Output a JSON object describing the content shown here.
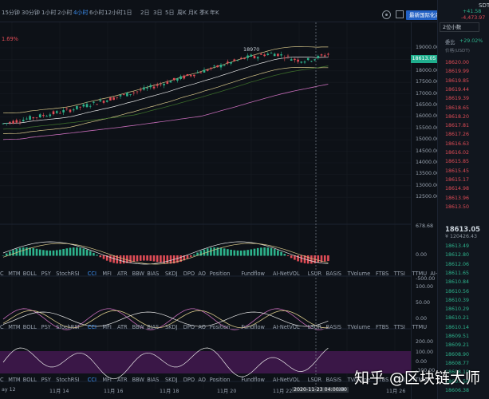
{
  "timeframes": [
    {
      "label": "15分钟",
      "active": false
    },
    {
      "label": "30分钟",
      "active": false
    },
    {
      "label": "1小时",
      "active": false
    },
    {
      "label": "2小时",
      "active": false
    },
    {
      "label": "4小时",
      "active": true
    },
    {
      "label": "6小时",
      "active": false
    },
    {
      "label": "12小时",
      "active": false
    },
    {
      "label": "1日",
      "active": false
    },
    {
      "label": "2日",
      "active": false
    },
    {
      "label": "3日",
      "active": false
    },
    {
      "label": "5日",
      "active": false
    },
    {
      "label": "周K",
      "active": false
    },
    {
      "label": "月K",
      "active": false
    },
    {
      "label": "季K",
      "active": false
    },
    {
      "label": "年K",
      "active": false
    }
  ],
  "news_button": "最新国际化杂货店",
  "dropdown_label": "蒙版图",
  "change_pct": "1.69%",
  "peak_label": "18970",
  "main_axis": [
    "19000.00",
    "18500.00",
    "18000.00",
    "17500.00",
    "17000.00",
    "16500.00",
    "16000.00",
    "15500.00",
    "15000.00",
    "14500.00",
    "14000.00",
    "13500.00",
    "13000.00",
    "12500.00"
  ],
  "current_price_tag": "18613.05",
  "macd_axis": [
    "678.68",
    "0.00",
    "-500.00"
  ],
  "macd_tag": "678.68",
  "rsi_axis": [
    "100.00",
    "50.00",
    "0.00"
  ],
  "cci_axis": [
    "200.00",
    "100.00",
    "0.00",
    "-100.00"
  ],
  "indicator_tabs_1": [
    "C",
    "MTM",
    "BOLL",
    "PSY",
    "StochRSI",
    "CCI",
    "MFI",
    "ATR",
    "BBW",
    "BIAS",
    "SKDJ",
    "DPO",
    "AO",
    "Position",
    "Fundflow",
    "AI-NetVOL",
    "LSUR",
    "BASIS",
    "TVolume",
    "FTBS",
    "TTSI",
    "TTMU",
    "AI-BSI"
  ],
  "indicator_tabs_2": [
    "C",
    "MTM",
    "BOLL",
    "PSY",
    "StochRSI",
    "CCI",
    "MFI",
    "ATR",
    "BBW",
    "BIAS",
    "SKDJ",
    "DPO",
    "AO",
    "Position",
    "Fundflow",
    "AI-NetVOL",
    "LSUR",
    "BASIS",
    "TVolume",
    "FTBS",
    "TTSI",
    "TTMU"
  ],
  "indicator_tabs_3": [
    "C",
    "MTM",
    "BOLL",
    "PSY",
    "StochRSI",
    "CCI",
    "MFI",
    "ATR",
    "BBW",
    "BIAS",
    "SKDJ",
    "DPO",
    "AO",
    "Position",
    "Fundflow",
    "AI-NetVOL",
    "LSUR",
    "BASIS",
    "TVolume",
    "FTBS",
    "TTSI",
    "TTMU"
  ],
  "x_axis": [
    {
      "label": "ay 12"
    },
    {
      "label": "11月 14"
    },
    {
      "label": "11月 16"
    },
    {
      "label": "11月 18"
    },
    {
      "label": "11月 20"
    },
    {
      "label": "11月 22"
    },
    {
      "label": "2020-11-23 04:00:00"
    },
    {
      "label": "24"
    },
    {
      "label": "11月 26"
    }
  ],
  "right_panel": {
    "symbol": "SDT",
    "meta_1": "+41.58",
    "meta_2": "-4,473.97",
    "mode": "2位小数",
    "ratio_label": "委比",
    "ratio_value": "+29.02%",
    "header_small": "价格(USDT)",
    "asks": [
      "18620.00",
      "18619.99",
      "18619.85",
      "18619.44",
      "18619.39",
      "18618.65",
      "18618.20",
      "18617.81",
      "18617.26",
      "18616.63",
      "18616.02",
      "18615.85",
      "18615.45",
      "18615.17",
      "18614.98",
      "18613.96",
      "18613.50"
    ],
    "last_price": "18613.05",
    "last_cny": "¥ 120426.43",
    "bids": [
      "18613.49",
      "18612.80",
      "18612.06",
      "18611.65",
      "18610.84",
      "18610.56",
      "18610.39",
      "18610.29",
      "18610.21",
      "18610.14",
      "18609.51",
      "18609.21",
      "18608.90",
      "18608.77",
      "18608.19",
      "18607.56",
      "18606.38"
    ]
  },
  "watermark": "知乎 @区块链大师",
  "colors": {
    "up": "#e04c56",
    "down": "#2db38c",
    "accent": "#3b8ef0",
    "bg": "#0d1117"
  }
}
